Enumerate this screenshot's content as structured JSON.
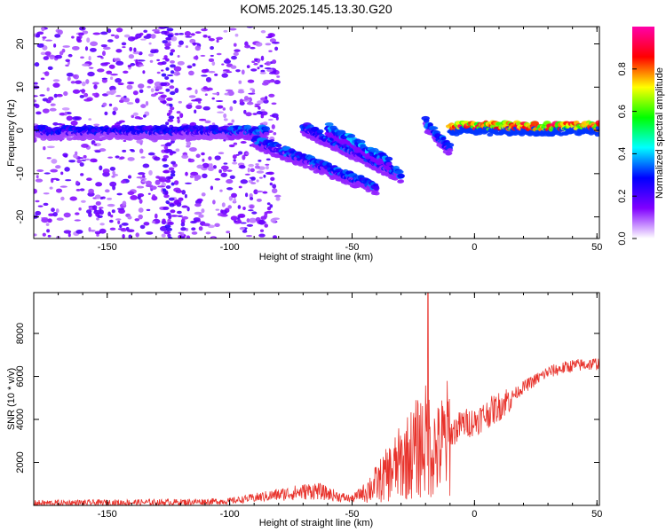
{
  "title": "KOM5.2025.145.13.30.G20",
  "chart_data": [
    {
      "type": "heatmap",
      "xlabel": "Height of straight line (km)",
      "ylabel": "Frequency (Hz)",
      "xlim": [
        -180,
        51
      ],
      "ylim": [
        -25,
        24
      ],
      "x_ticks": [
        -150,
        -100,
        -50,
        0,
        50
      ],
      "y_ticks": [
        -20,
        -10,
        0,
        10,
        20
      ],
      "colorbar": {
        "label": "Normalized spectral amplitude",
        "range": [
          0,
          1
        ],
        "ticks": [
          "0.0",
          "0.2",
          "0.4",
          "0.6",
          "0.8"
        ],
        "tick_values": [
          0,
          0.2,
          0.4,
          0.6,
          0.8
        ],
        "colors": [
          "#ffffff",
          "#8000ff",
          "#0000ff",
          "#00ffff",
          "#00ff00",
          "#ffff00",
          "#ff0000",
          "#ff00aa"
        ]
      },
      "features": [
        {
          "x": [
            -180,
            -100
          ],
          "y": [
            0,
            0
          ],
          "amplitude": 0.3
        },
        {
          "x": [
            -100,
            -85
          ],
          "y": [
            0,
            0
          ],
          "amplitude": 0.35
        },
        {
          "x": [
            -90,
            -40
          ],
          "y": [
            -2,
            -13
          ],
          "amplitude": 0.35
        },
        {
          "x": [
            -70,
            -30
          ],
          "y": [
            1,
            -10
          ],
          "amplitude": 0.35
        },
        {
          "x": [
            -60,
            -35
          ],
          "y": [
            1,
            -7
          ],
          "amplitude": 0.4
        },
        {
          "x": [
            -20,
            -10
          ],
          "y": [
            2,
            -4
          ],
          "amplitude": 0.35
        },
        {
          "x": [
            -10,
            51
          ],
          "y": [
            1,
            1
          ],
          "amplitude": 0.9
        }
      ]
    },
    {
      "type": "line",
      "xlabel": "Height of straight line (km)",
      "ylabel": "SNR (10 * v/v)",
      "xlim": [
        -180,
        51
      ],
      "ylim": [
        0,
        9900
      ],
      "x_ticks": [
        -150,
        -100,
        -50,
        0,
        50
      ],
      "y_ticks": [
        2000,
        4000,
        6000,
        8000
      ],
      "color": "#e8332c",
      "trend": {
        "x": [
          -180,
          -120,
          -100,
          -80,
          -65,
          -55,
          -50,
          -40,
          -30,
          -20,
          -15,
          -10,
          -5,
          0,
          10,
          20,
          30,
          40,
          51
        ],
        "y": [
          100,
          150,
          200,
          500,
          700,
          400,
          300,
          1000,
          2000,
          3000,
          2500,
          3300,
          3800,
          3900,
          4600,
          5500,
          6200,
          6500,
          6600
        ]
      },
      "spike": {
        "x": -19,
        "y": 9900
      }
    }
  ]
}
